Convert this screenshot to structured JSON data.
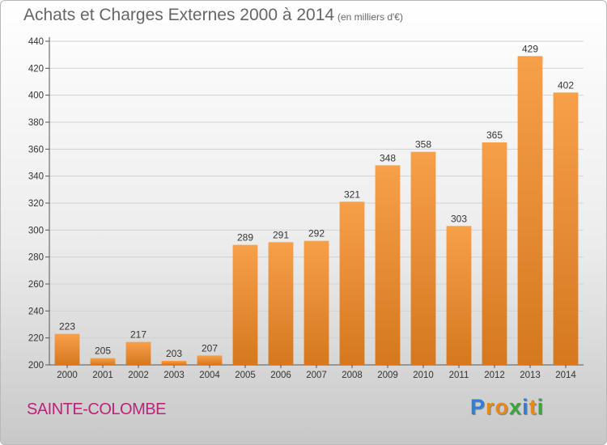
{
  "title": "Achats et Charges Externes 2000 à 2014",
  "unit": "(en milliers d'€)",
  "place": "SAINTE-COLOMBE",
  "logo": {
    "text": "Proxiti",
    "letters": [
      {
        "ch": "P",
        "color": "#2f7fd6"
      },
      {
        "ch": "r",
        "color": "#e8891a"
      },
      {
        "ch": "o",
        "color": "#e8891a"
      },
      {
        "ch": "x",
        "color": "#3aa63a"
      },
      {
        "ch": "i",
        "color": "#2f7fd6"
      },
      {
        "ch": "t",
        "color": "#e8891a"
      },
      {
        "ch": "i",
        "color": "#3aa63a"
      }
    ]
  },
  "colors": {
    "bar_top": "#f6a04a",
    "bar_bottom": "#d5781f",
    "accent": "#c0217a"
  },
  "chart_data": {
    "type": "bar",
    "categories": [
      "2000",
      "2001",
      "2002",
      "2003",
      "2004",
      "2005",
      "2006",
      "2007",
      "2008",
      "2009",
      "2010",
      "2011",
      "2012",
      "2013",
      "2014"
    ],
    "values": [
      223,
      205,
      217,
      203,
      207,
      289,
      291,
      292,
      321,
      348,
      358,
      303,
      365,
      429,
      402
    ],
    "yticks": [
      200,
      220,
      240,
      260,
      280,
      300,
      320,
      340,
      360,
      380,
      400,
      420,
      440
    ],
    "ylim": [
      200,
      440
    ],
    "grid": true
  }
}
